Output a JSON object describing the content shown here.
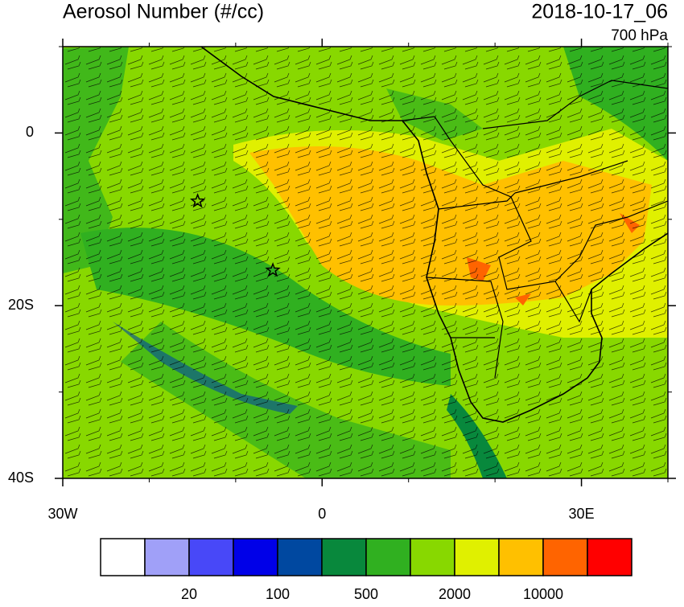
{
  "map": {
    "title": "Aerosol Number (#/cc)",
    "time": "2018-10-17_06",
    "level": "700 hPa",
    "lon_range": [
      -30,
      40
    ],
    "lat_range": [
      -40,
      10
    ],
    "lon_ticks": [
      {
        "value": -30,
        "label": "30W"
      },
      0,
      {
        "value": 30,
        "label": "30E"
      }
    ],
    "lat_ticks": [
      0,
      {
        "value": -20,
        "label": "20S"
      },
      {
        "value": -40,
        "label": "40S"
      }
    ],
    "lon_minor_ticks": [
      -20,
      -10,
      10,
      20,
      40
    ],
    "lat_minor_ticks": [
      10,
      -10,
      -30
    ],
    "markers": [
      {
        "lon": -14.4,
        "lat": -7.9
      },
      {
        "lon": -5.7,
        "lat": -15.9
      }
    ],
    "colorbar": {
      "colors": [
        "#ffffff",
        "#a0a0f8",
        "#4848f8",
        "#0000e8",
        "#0048a0",
        "#08883c",
        "#30b020",
        "#88d800",
        "#e0f000",
        "#ffc000",
        "#ff6400",
        "#ff0000"
      ],
      "labels": [
        20,
        100,
        500,
        2000,
        10000
      ]
    }
  }
}
